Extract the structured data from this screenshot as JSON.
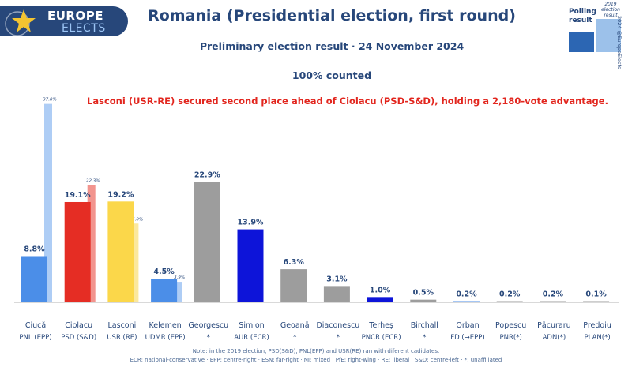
{
  "header": {
    "logo_line1": "EUROPE",
    "logo_line2": "ELECTS",
    "title": "Romania (Presidential election, first round)",
    "subtitle": "Preliminary election result · 24 November 2024",
    "counted": "100% counted",
    "headline": "Lasconi (USR-RE) secured second place ahead of Ciolacu (PSD-S&D), holding a 2,180-vote advantage."
  },
  "legend": {
    "polling": "Polling result",
    "previous": "2019 election result",
    "handle": "2024 @EuropeElects"
  },
  "notes": {
    "line1": "Note: in the 2019 election, PSD(S&D), PNL(EPP) and USR(RE) ran with diferent cadidates.",
    "line2": "ECR: national-conservative · EPP: centre-right · ESN: far-right · NI: mixed · PfE: right-wing · RE: liberal · S&D: centre-left · *: unaffiliated"
  },
  "colors": {
    "text": "#27477a",
    "accent": "#e2261e",
    "brand": "#27477a"
  },
  "chart_data": {
    "type": "bar",
    "ylim": [
      0,
      40
    ],
    "categories": [
      {
        "name": "Ciucă",
        "party": "PNL (EPP)",
        "value": 8.8,
        "label": "8.8%",
        "prev": 37.8,
        "prev_label": "37.8%",
        "color": "#4b8ee8",
        "prev_color": "#aecdf5"
      },
      {
        "name": "Ciolacu",
        "party": "PSD (S&D)",
        "value": 19.1,
        "label": "19.1%",
        "prev": 22.3,
        "prev_label": "22.3%",
        "color": "#e52d24",
        "prev_color": "#f2948e"
      },
      {
        "name": "Lasconi",
        "party": "USR (RE)",
        "value": 19.2,
        "label": "19.2%",
        "prev": 15.0,
        "prev_label": "15.0%",
        "color": "#fbd74a",
        "prev_color": "#fbe89d"
      },
      {
        "name": "Kelemen",
        "party": "UDMR (EPP)",
        "value": 4.5,
        "label": "4.5%",
        "prev": 3.9,
        "prev_label": "3.9%",
        "color": "#4b8ee8",
        "prev_color": "#aecdf5"
      },
      {
        "name": "Georgescu",
        "party": "*",
        "value": 22.9,
        "label": "22.9%",
        "prev": null,
        "prev_label": "",
        "color": "#9d9d9d",
        "prev_color": ""
      },
      {
        "name": "Simion",
        "party": "AUR (ECR)",
        "value": 13.9,
        "label": "13.9%",
        "prev": null,
        "prev_label": "",
        "color": "#0d14d9",
        "prev_color": ""
      },
      {
        "name": "Geoană",
        "party": "*",
        "value": 6.3,
        "label": "6.3%",
        "prev": null,
        "prev_label": "",
        "color": "#9d9d9d",
        "prev_color": ""
      },
      {
        "name": "Diaconescu",
        "party": "*",
        "value": 3.1,
        "label": "3.1%",
        "prev": null,
        "prev_label": "",
        "color": "#9d9d9d",
        "prev_color": ""
      },
      {
        "name": "Terheș",
        "party": "PNCR (ECR)",
        "value": 1.0,
        "label": "1.0%",
        "prev": null,
        "prev_label": "",
        "color": "#0d14d9",
        "prev_color": ""
      },
      {
        "name": "Birchall",
        "party": "*",
        "value": 0.5,
        "label": "0.5%",
        "prev": null,
        "prev_label": "",
        "color": "#9d9d9d",
        "prev_color": ""
      },
      {
        "name": "Orban",
        "party": "FD (→EPP)",
        "value": 0.2,
        "label": "0.2%",
        "prev": null,
        "prev_label": "",
        "color": "#4b8ee8",
        "prev_color": ""
      },
      {
        "name": "Popescu",
        "party": "PNR(*)",
        "value": 0.2,
        "label": "0.2%",
        "prev": null,
        "prev_label": "",
        "color": "#9d9d9d",
        "prev_color": ""
      },
      {
        "name": "Păcuraru",
        "party": "ADN(*)",
        "value": 0.2,
        "label": "0.2%",
        "prev": null,
        "prev_label": "",
        "color": "#9d9d9d",
        "prev_color": ""
      },
      {
        "name": "Predoiu",
        "party": "PLAN(*)",
        "value": 0.1,
        "label": "0.1%",
        "prev": null,
        "prev_label": "",
        "color": "#9d9d9d",
        "prev_color": ""
      }
    ]
  }
}
